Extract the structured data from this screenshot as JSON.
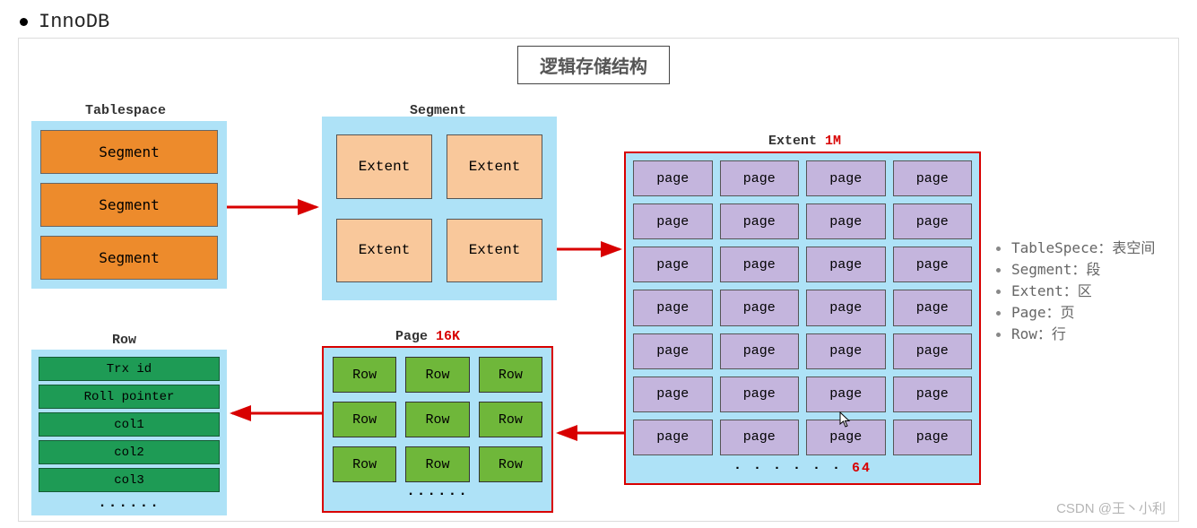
{
  "header": {
    "title": "InnoDB"
  },
  "diagram": {
    "title": "逻辑存储结构",
    "tablespace": {
      "label": "Tablespace",
      "items": [
        "Segment",
        "Segment",
        "Segment"
      ],
      "bg": "#aee2f7",
      "item_bg": "#ed8b2c"
    },
    "segment": {
      "label": "Segment",
      "items": [
        "Extent",
        "Extent",
        "Extent",
        "Extent"
      ],
      "bg": "#aee2f7",
      "item_bg": "#f9c89b"
    },
    "extent": {
      "label": "Extent",
      "size": "1M",
      "page_label": "page",
      "rows": 7,
      "cols": 4,
      "dots": "· · · · · ·",
      "total": "64",
      "border": "#d80000",
      "bg": "#aee2f7",
      "item_bg": "#c4b5dd"
    },
    "page": {
      "label": "Page",
      "size": "16K",
      "row_label": "Row",
      "rows": 3,
      "cols": 3,
      "dots": "······",
      "border": "#d80000",
      "bg": "#aee2f7",
      "item_bg": "#6fb73a"
    },
    "row": {
      "label": "Row",
      "fields": [
        "Trx id",
        "Roll pointer",
        "col1",
        "col2",
        "col3"
      ],
      "dots": "······",
      "bg": "#aee2f7",
      "item_bg": "#1e9b55"
    },
    "arrow_color": "#d80000"
  },
  "legend": {
    "items": [
      "TableSpece：表空间",
      "Segment：段",
      "Extent：区",
      "Page：页",
      "Row：行"
    ]
  },
  "watermark": "CSDN @王丶小利"
}
